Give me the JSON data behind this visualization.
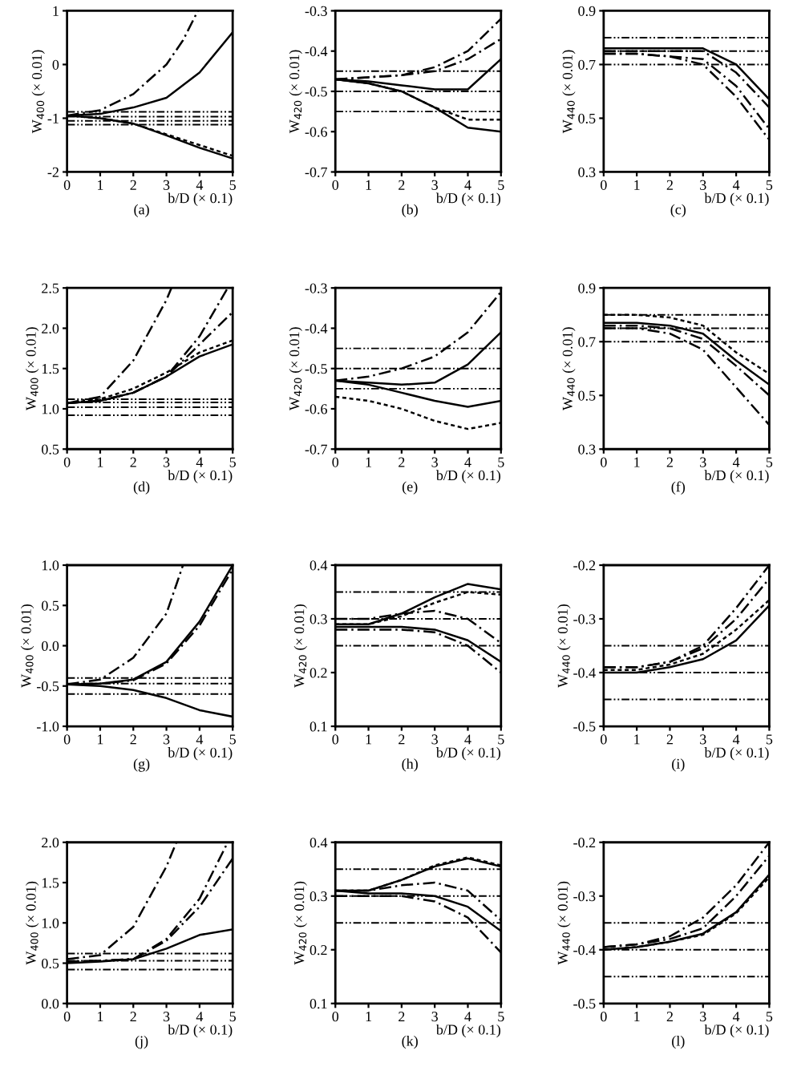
{
  "chart_data": [
    {
      "type": "line",
      "xlabel": "b/D (× 0.1)",
      "ylabel": "W$_{400}$ (× 0.01)",
      "annotations": [
        "(a)"
      ],
      "xlim": [
        0,
        5
      ],
      "xticks": [
        0,
        1,
        2,
        3,
        4,
        5
      ],
      "ylim": [
        -2,
        1
      ],
      "yticks": [
        -2,
        -1,
        0,
        1
      ],
      "x": [
        0,
        1,
        2,
        3,
        4,
        5
      ],
      "grid": false,
      "legend": false,
      "series": [
        {
          "color": "#000000",
          "line_style": "dashed",
          "x": [
            0,
            1,
            2,
            3,
            3.5,
            3.95
          ],
          "values": [
            -0.95,
            -0.85,
            -0.55,
            0,
            0.45,
            1.0
          ]
        },
        {
          "color": "#000000",
          "line_style": "solid",
          "values": [
            -0.95,
            -0.92,
            -0.8,
            -0.62,
            -0.15,
            0.6
          ]
        },
        {
          "color": "#000000",
          "line_style": "dotted",
          "values": [
            -0.95,
            -1.0,
            -1.1,
            -1.3,
            -1.5,
            -1.7
          ]
        },
        {
          "color": "#000000",
          "line_style": "solid",
          "values": [
            -0.95,
            -1.0,
            -1.1,
            -1.32,
            -1.55,
            -1.75
          ]
        }
      ],
      "ref_lines": [
        {
          "axis": "y",
          "value": -0.88,
          "line_style": "dashed"
        },
        {
          "axis": "y",
          "value": -0.97,
          "line_style": "dashed"
        },
        {
          "axis": "y",
          "value": -1.05,
          "line_style": "dashed"
        },
        {
          "axis": "y",
          "value": -1.12,
          "line_style": "dashed"
        }
      ]
    },
    {
      "type": "line",
      "xlabel": "b/D (× 0.1)",
      "ylabel": "W$_{420}$ (× 0.01)",
      "annotations": [
        "(b)"
      ],
      "xlim": [
        0,
        5
      ],
      "xticks": [
        0,
        1,
        2,
        3,
        4,
        5
      ],
      "ylim": [
        -0.7,
        -0.3
      ],
      "yticks": [
        -0.7,
        -0.6,
        -0.5,
        -0.4,
        -0.3
      ],
      "x": [
        0,
        1,
        2,
        3,
        4,
        5
      ],
      "grid": false,
      "legend": false,
      "series": [
        {
          "color": "#000000",
          "line_style": "dashed",
          "values": [
            -0.47,
            -0.465,
            -0.46,
            -0.44,
            -0.4,
            -0.32
          ]
        },
        {
          "color": "#000000",
          "line_style": "dashed",
          "values": [
            -0.47,
            -0.465,
            -0.46,
            -0.45,
            -0.42,
            -0.37
          ]
        },
        {
          "color": "#000000",
          "line_style": "solid",
          "values": [
            -0.47,
            -0.475,
            -0.485,
            -0.495,
            -0.495,
            -0.42
          ]
        },
        {
          "color": "#000000",
          "line_style": "dotted",
          "values": [
            -0.47,
            -0.48,
            -0.5,
            -0.54,
            -0.57,
            -0.57
          ]
        },
        {
          "color": "#000000",
          "line_style": "solid",
          "values": [
            -0.47,
            -0.48,
            -0.5,
            -0.54,
            -0.59,
            -0.6
          ]
        }
      ],
      "ref_lines": [
        {
          "axis": "y",
          "value": -0.45,
          "line_style": "dashed"
        },
        {
          "axis": "y",
          "value": -0.5,
          "line_style": "dashed"
        },
        {
          "axis": "y",
          "value": -0.55,
          "line_style": "dashed"
        }
      ]
    },
    {
      "type": "line",
      "xlabel": "b/D (× 0.1)",
      "ylabel": "W$_{440}$ (× 0.01)",
      "annotations": [
        "(c)"
      ],
      "xlim": [
        0,
        5
      ],
      "xticks": [
        0,
        1,
        2,
        3,
        4,
        5
      ],
      "ylim": [
        0.3,
        0.9
      ],
      "yticks": [
        0.3,
        0.5,
        0.7,
        0.9
      ],
      "x": [
        0,
        1,
        2,
        3,
        4,
        5
      ],
      "grid": false,
      "legend": false,
      "series": [
        {
          "color": "#000000",
          "line_style": "solid",
          "values": [
            0.76,
            0.76,
            0.76,
            0.76,
            0.7,
            0.57
          ]
        },
        {
          "color": "#000000",
          "line_style": "dashed",
          "values": [
            0.75,
            0.75,
            0.75,
            0.75,
            0.67,
            0.54
          ]
        },
        {
          "color": "#000000",
          "line_style": "dashed",
          "values": [
            0.74,
            0.74,
            0.73,
            0.72,
            0.62,
            0.46
          ]
        },
        {
          "color": "#000000",
          "line_style": "dashed",
          "values": [
            0.74,
            0.74,
            0.73,
            0.7,
            0.58,
            0.42
          ]
        }
      ],
      "ref_lines": [
        {
          "axis": "y",
          "value": 0.8,
          "line_style": "dashed"
        },
        {
          "axis": "y",
          "value": 0.75,
          "line_style": "dashed"
        },
        {
          "axis": "y",
          "value": 0.7,
          "line_style": "dashed"
        }
      ]
    },
    {
      "type": "line",
      "xlabel": "b/D (× 0.1)",
      "ylabel": "W$_{400}$ (× 0.01)",
      "annotations": [
        "(d)"
      ],
      "xlim": [
        0,
        5
      ],
      "xticks": [
        0,
        1,
        2,
        3,
        4,
        5
      ],
      "ylim": [
        0.5,
        2.5
      ],
      "yticks": [
        0.5,
        {
          "value": 1,
          "label": "1.0"
        },
        1.5,
        {
          "value": 2,
          "label": "2.0"
        },
        2.5
      ],
      "x": [
        0,
        1,
        2,
        3,
        4,
        5
      ],
      "grid": false,
      "legend": false,
      "series": [
        {
          "color": "#000000",
          "line_style": "dashed",
          "x": [
            0,
            1,
            2,
            3,
            3.15
          ],
          "values": [
            1.07,
            1.15,
            1.6,
            2.35,
            2.5
          ]
        },
        {
          "color": "#000000",
          "line_style": "dashed",
          "x": [
            0,
            1,
            2,
            3,
            4,
            4.85
          ],
          "values": [
            1.07,
            1.1,
            1.2,
            1.4,
            1.9,
            2.5
          ]
        },
        {
          "color": "#000000",
          "line_style": "dashed",
          "values": [
            1.07,
            1.1,
            1.2,
            1.4,
            1.8,
            2.2
          ]
        },
        {
          "color": "#000000",
          "line_style": "dotted",
          "values": [
            1.07,
            1.12,
            1.25,
            1.45,
            1.7,
            1.85
          ]
        },
        {
          "color": "#000000",
          "line_style": "solid",
          "values": [
            1.07,
            1.1,
            1.2,
            1.4,
            1.65,
            1.8
          ]
        }
      ],
      "ref_lines": [
        {
          "axis": "y",
          "value": 1.12,
          "line_style": "dashed"
        },
        {
          "axis": "y",
          "value": 1.08,
          "line_style": "dashed"
        },
        {
          "axis": "y",
          "value": 1.02,
          "line_style": "dashed"
        },
        {
          "axis": "y",
          "value": 0.92,
          "line_style": "dashed"
        }
      ]
    },
    {
      "type": "line",
      "xlabel": "b/D (× 0.1)",
      "ylabel": "W$_{420}$ (× 0.01)",
      "annotations": [
        "(e)"
      ],
      "xlim": [
        0,
        5
      ],
      "xticks": [
        0,
        1,
        2,
        3,
        4,
        5
      ],
      "ylim": [
        -0.7,
        -0.3
      ],
      "yticks": [
        -0.7,
        -0.6,
        -0.5,
        -0.4,
        -0.3
      ],
      "x": [
        0,
        1,
        2,
        3,
        4,
        5
      ],
      "grid": false,
      "legend": false,
      "series": [
        {
          "color": "#000000",
          "line_style": "dashed",
          "values": [
            -0.53,
            -0.52,
            -0.5,
            -0.47,
            -0.41,
            -0.31
          ]
        },
        {
          "color": "#000000",
          "line_style": "solid",
          "values": [
            -0.53,
            -0.535,
            -0.54,
            -0.535,
            -0.49,
            -0.41
          ]
        },
        {
          "color": "#000000",
          "line_style": "solid",
          "values": [
            -0.53,
            -0.54,
            -0.56,
            -0.58,
            -0.595,
            -0.58
          ]
        },
        {
          "color": "#000000",
          "line_style": "dotted",
          "values": [
            -0.57,
            -0.58,
            -0.6,
            -0.63,
            -0.65,
            -0.635
          ]
        }
      ],
      "ref_lines": [
        {
          "axis": "y",
          "value": -0.45,
          "line_style": "dashed"
        },
        {
          "axis": "y",
          "value": -0.5,
          "line_style": "dashed"
        },
        {
          "axis": "y",
          "value": -0.55,
          "line_style": "dashed"
        }
      ]
    },
    {
      "type": "line",
      "xlabel": "b/D (× 0.1)",
      "ylabel": "W$_{440}$ (× 0.01)",
      "annotations": [
        "(f)"
      ],
      "xlim": [
        0,
        5
      ],
      "xticks": [
        0,
        1,
        2,
        3,
        4,
        5
      ],
      "ylim": [
        0.3,
        0.9
      ],
      "yticks": [
        0.3,
        0.5,
        0.7,
        0.9
      ],
      "x": [
        0,
        1,
        2,
        3,
        4,
        5
      ],
      "grid": false,
      "legend": false,
      "series": [
        {
          "color": "#000000",
          "line_style": "dotted",
          "values": [
            0.8,
            0.8,
            0.79,
            0.76,
            0.66,
            0.58
          ]
        },
        {
          "color": "#000000",
          "line_style": "solid",
          "values": [
            0.77,
            0.77,
            0.76,
            0.73,
            0.63,
            0.54
          ]
        },
        {
          "color": "#000000",
          "line_style": "dashed",
          "values": [
            0.76,
            0.76,
            0.75,
            0.71,
            0.61,
            0.5
          ]
        },
        {
          "color": "#000000",
          "line_style": "dashed",
          "values": [
            0.75,
            0.75,
            0.73,
            0.67,
            0.53,
            0.39
          ]
        }
      ],
      "ref_lines": [
        {
          "axis": "y",
          "value": 0.8,
          "line_style": "dashed"
        },
        {
          "axis": "y",
          "value": 0.75,
          "line_style": "dashed"
        },
        {
          "axis": "y",
          "value": 0.7,
          "line_style": "dashed"
        }
      ]
    },
    {
      "type": "line",
      "xlabel": "b/D (× 0.1)",
      "ylabel": "W$_{400}$ (× 0.01)",
      "annotations": [
        "(g)"
      ],
      "xlim": [
        0,
        5
      ],
      "xticks": [
        0,
        1,
        2,
        3,
        4,
        5
      ],
      "ylim": [
        -1,
        1
      ],
      "yticks": [
        {
          "value": -1,
          "label": "-1.0"
        },
        -0.5,
        {
          "value": 0,
          "label": "0.0"
        },
        0.5,
        {
          "value": 1,
          "label": "1.0"
        }
      ],
      "x": [
        0,
        1,
        2,
        3,
        4,
        5
      ],
      "grid": false,
      "legend": false,
      "series": [
        {
          "color": "#000000",
          "line_style": "dashed",
          "x": [
            0,
            1,
            2,
            3,
            3.5
          ],
          "values": [
            -0.48,
            -0.42,
            -0.15,
            0.4,
            1.0
          ]
        },
        {
          "color": "#000000",
          "line_style": "solid",
          "values": [
            -0.48,
            -0.47,
            -0.42,
            -0.2,
            0.3,
            1.0
          ]
        },
        {
          "color": "#000000",
          "line_style": "dashed",
          "values": [
            -0.48,
            -0.47,
            -0.43,
            -0.22,
            0.25,
            0.95
          ]
        },
        {
          "color": "#000000",
          "line_style": "solid",
          "values": [
            -0.48,
            -0.5,
            -0.55,
            -0.65,
            -0.8,
            -0.88
          ]
        }
      ],
      "ref_lines": [
        {
          "axis": "y",
          "value": -0.4,
          "line_style": "dashed"
        },
        {
          "axis": "y",
          "value": -0.47,
          "line_style": "dashed"
        },
        {
          "axis": "y",
          "value": -0.6,
          "line_style": "dashed"
        }
      ]
    },
    {
      "type": "line",
      "xlabel": "b/D (× 0.1)",
      "ylabel": "W$_{420}$ (× 0.01)",
      "annotations": [
        "(h)"
      ],
      "xlim": [
        0,
        5
      ],
      "xticks": [
        0,
        1,
        2,
        3,
        4,
        5
      ],
      "ylim": [
        0.1,
        0.4
      ],
      "yticks": [
        0.1,
        0.2,
        0.3,
        0.4
      ],
      "x": [
        0,
        1,
        2,
        3,
        4,
        5
      ],
      "grid": false,
      "legend": false,
      "series": [
        {
          "color": "#000000",
          "line_style": "solid",
          "values": [
            0.29,
            0.29,
            0.31,
            0.34,
            0.365,
            0.355
          ]
        },
        {
          "color": "#000000",
          "line_style": "dotted",
          "values": [
            0.29,
            0.29,
            0.305,
            0.33,
            0.35,
            0.345
          ]
        },
        {
          "color": "#000000",
          "line_style": "dashed",
          "values": [
            0.3,
            0.3,
            0.31,
            0.315,
            0.3,
            0.255
          ]
        },
        {
          "color": "#000000",
          "line_style": "solid",
          "values": [
            0.285,
            0.285,
            0.285,
            0.28,
            0.26,
            0.22
          ]
        },
        {
          "color": "#000000",
          "line_style": "dashed",
          "values": [
            0.28,
            0.28,
            0.28,
            0.275,
            0.25,
            0.2
          ]
        }
      ],
      "ref_lines": [
        {
          "axis": "y",
          "value": 0.35,
          "line_style": "dashed"
        },
        {
          "axis": "y",
          "value": 0.3,
          "line_style": "dashed"
        },
        {
          "axis": "y",
          "value": 0.25,
          "line_style": "dashed"
        }
      ]
    },
    {
      "type": "line",
      "xlabel": "b/D (× 0.1)",
      "ylabel": "W$_{440}$ (× 0.01)",
      "annotations": [
        "(i)"
      ],
      "xlim": [
        0,
        5
      ],
      "xticks": [
        0,
        1,
        2,
        3,
        4,
        5
      ],
      "ylim": [
        -0.5,
        -0.2
      ],
      "yticks": [
        -0.5,
        -0.4,
        -0.3,
        -0.2
      ],
      "x": [
        0,
        1,
        2,
        3,
        4,
        5
      ],
      "grid": false,
      "legend": false,
      "series": [
        {
          "color": "#000000",
          "line_style": "dashed",
          "values": [
            -0.39,
            -0.39,
            -0.38,
            -0.35,
            -0.28,
            -0.2
          ]
        },
        {
          "color": "#000000",
          "line_style": "dashed",
          "values": [
            -0.39,
            -0.39,
            -0.38,
            -0.355,
            -0.3,
            -0.225
          ]
        },
        {
          "color": "#000000",
          "line_style": "dotted",
          "values": [
            -0.395,
            -0.395,
            -0.385,
            -0.365,
            -0.32,
            -0.265
          ]
        },
        {
          "color": "#000000",
          "line_style": "solid",
          "values": [
            -0.4,
            -0.4,
            -0.39,
            -0.375,
            -0.34,
            -0.275
          ]
        }
      ],
      "ref_lines": [
        {
          "axis": "y",
          "value": -0.35,
          "line_style": "dashed"
        },
        {
          "axis": "y",
          "value": -0.4,
          "line_style": "dashed"
        },
        {
          "axis": "y",
          "value": -0.45,
          "line_style": "dashed"
        }
      ]
    },
    {
      "type": "line",
      "xlabel": "b/D (× 0.1)",
      "ylabel": "W$_{400}$ (× 0.01)",
      "annotations": [
        "(j)"
      ],
      "xlim": [
        0,
        5
      ],
      "xticks": [
        0,
        1,
        2,
        3,
        4,
        5
      ],
      "ylim": [
        0,
        2
      ],
      "yticks": [
        {
          "value": 0,
          "label": "0.0"
        },
        0.5,
        {
          "value": 1,
          "label": "1.0"
        },
        1.5,
        {
          "value": 2,
          "label": "2.0"
        }
      ],
      "x": [
        0,
        1,
        2,
        3,
        4,
        5
      ],
      "grid": false,
      "legend": false,
      "series": [
        {
          "color": "#000000",
          "line_style": "dashed",
          "x": [
            0,
            1,
            2,
            3,
            3.3
          ],
          "values": [
            0.55,
            0.6,
            0.95,
            1.7,
            2.0
          ]
        },
        {
          "color": "#000000",
          "line_style": "dashed",
          "x": [
            0,
            1,
            2,
            3,
            4,
            4.85
          ],
          "values": [
            0.52,
            0.53,
            0.55,
            0.8,
            1.3,
            2.0
          ]
        },
        {
          "color": "#000000",
          "line_style": "dashed",
          "values": [
            0.52,
            0.53,
            0.55,
            0.78,
            1.2,
            1.8
          ]
        },
        {
          "color": "#000000",
          "line_style": "solid",
          "values": [
            0.5,
            0.52,
            0.55,
            0.68,
            0.85,
            0.92
          ]
        }
      ],
      "ref_lines": [
        {
          "axis": "y",
          "value": 0.62,
          "line_style": "dashed"
        },
        {
          "axis": "y",
          "value": 0.53,
          "line_style": "dashed"
        },
        {
          "axis": "y",
          "value": 0.42,
          "line_style": "dashed"
        }
      ]
    },
    {
      "type": "line",
      "xlabel": "b/D (× 0.1)",
      "ylabel": "W$_{420}$ (× 0.01)",
      "annotations": [
        "(k)"
      ],
      "xlim": [
        0,
        5
      ],
      "xticks": [
        0,
        1,
        2,
        3,
        4,
        5
      ],
      "ylim": [
        0.1,
        0.4
      ],
      "yticks": [
        0.1,
        0.2,
        0.3,
        0.4
      ],
      "x": [
        0,
        1,
        2,
        3,
        4,
        5
      ],
      "grid": false,
      "legend": false,
      "series": [
        {
          "color": "#000000",
          "line_style": "solid",
          "values": [
            0.31,
            0.31,
            0.33,
            0.355,
            0.37,
            0.355
          ]
        },
        {
          "color": "#000000",
          "line_style": "dotted",
          "values": [
            0.31,
            0.31,
            0.33,
            0.357,
            0.372,
            0.357
          ]
        },
        {
          "color": "#000000",
          "line_style": "dashed",
          "values": [
            0.31,
            0.31,
            0.32,
            0.325,
            0.31,
            0.255
          ]
        },
        {
          "color": "#000000",
          "line_style": "solid",
          "values": [
            0.31,
            0.305,
            0.305,
            0.3,
            0.28,
            0.235
          ]
        },
        {
          "color": "#000000",
          "line_style": "dashed",
          "values": [
            0.3,
            0.3,
            0.3,
            0.29,
            0.26,
            0.195
          ]
        }
      ],
      "ref_lines": [
        {
          "axis": "y",
          "value": 0.35,
          "line_style": "dashed"
        },
        {
          "axis": "y",
          "value": 0.3,
          "line_style": "dashed"
        },
        {
          "axis": "y",
          "value": 0.25,
          "line_style": "dashed"
        }
      ]
    },
    {
      "type": "line",
      "xlabel": "b/D (× 0.1)",
      "ylabel": "W$_{440}$ (× 0.01)",
      "annotations": [
        "(l)"
      ],
      "xlim": [
        0,
        5
      ],
      "xticks": [
        0,
        1,
        2,
        3,
        4,
        5
      ],
      "ylim": [
        -0.5,
        -0.2
      ],
      "yticks": [
        -0.5,
        -0.4,
        -0.3,
        -0.2
      ],
      "x": [
        0,
        1,
        2,
        3,
        4,
        5
      ],
      "grid": false,
      "legend": false,
      "series": [
        {
          "color": "#000000",
          "line_style": "dashed",
          "values": [
            -0.395,
            -0.39,
            -0.375,
            -0.34,
            -0.28,
            -0.2
          ]
        },
        {
          "color": "#000000",
          "line_style": "dashed",
          "values": [
            -0.395,
            -0.39,
            -0.38,
            -0.36,
            -0.3,
            -0.225
          ]
        },
        {
          "color": "#000000",
          "line_style": "solid",
          "values": [
            -0.4,
            -0.395,
            -0.385,
            -0.37,
            -0.33,
            -0.26
          ]
        },
        {
          "color": "#000000",
          "line_style": "dotted",
          "values": [
            -0.4,
            -0.395,
            -0.385,
            -0.372,
            -0.332,
            -0.265
          ]
        }
      ],
      "ref_lines": [
        {
          "axis": "y",
          "value": -0.35,
          "line_style": "dashed"
        },
        {
          "axis": "y",
          "value": -0.4,
          "line_style": "dashed"
        },
        {
          "axis": "y",
          "value": -0.45,
          "line_style": "dashed"
        }
      ]
    }
  ]
}
